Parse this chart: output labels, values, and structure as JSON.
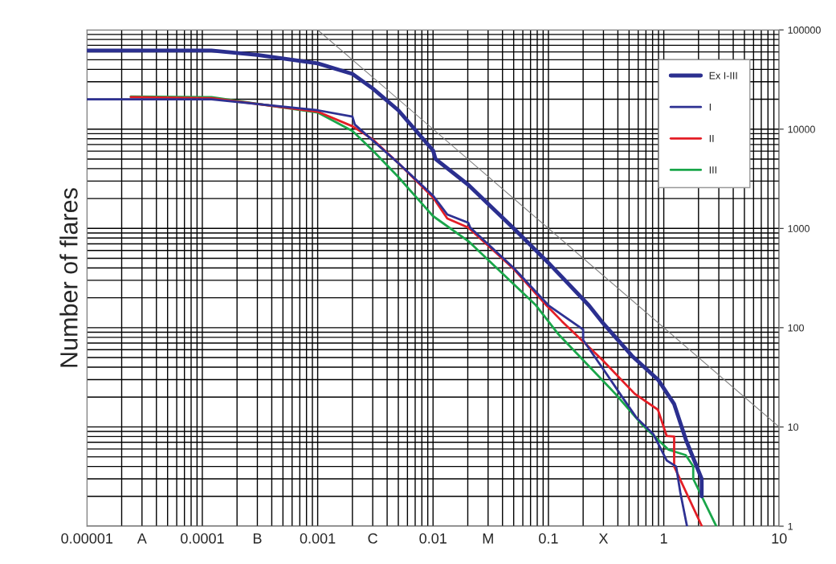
{
  "chart_data": {
    "type": "line",
    "ylabel": "Number of flares",
    "log": "xy",
    "grid": true,
    "legend": "top right",
    "line_style": "solid",
    "marker": "none",
    "xlim": [
      1e-05,
      10
    ],
    "ylim": [
      1,
      100000
    ],
    "xticks": [
      {
        "value": 1e-05,
        "label": "0.00001"
      },
      {
        "value": 3e-05,
        "label": "A"
      },
      {
        "value": 0.0001,
        "label": "0.0001"
      },
      {
        "value": 0.0003,
        "label": "B"
      },
      {
        "value": 0.001,
        "label": "0.001"
      },
      {
        "value": 0.003,
        "label": "C"
      },
      {
        "value": 0.01,
        "label": "0.01"
      },
      {
        "value": 0.03,
        "label": "M"
      },
      {
        "value": 0.1,
        "label": "0.1"
      },
      {
        "value": 0.3,
        "label": "X"
      },
      {
        "value": 1,
        "label": "1"
      },
      {
        "value": 10,
        "label": "10"
      }
    ],
    "yticks": [
      1,
      10,
      100,
      1000,
      10000,
      100000
    ],
    "series": [
      {
        "name": "Ex I-III",
        "color": "#2b2f8f",
        "x": [
          1e-05,
          0.00012,
          0.0003,
          0.001,
          0.002,
          0.003,
          0.005,
          0.01,
          0.0105,
          0.0202,
          0.05,
          0.1,
          0.224,
          0.29,
          0.53,
          0.89,
          1.23,
          1.55,
          2.13,
          2.13
        ],
        "values": [
          62000,
          62000,
          56000,
          46000,
          36000,
          25700,
          15500,
          6100,
          5000,
          2750,
          1000,
          450,
          168,
          115,
          52,
          30,
          17,
          7.5,
          3,
          2
        ]
      },
      {
        "name": "I",
        "color": "#2e3192",
        "x": [
          1e-05,
          0.00012,
          0.001,
          0.002,
          0.0021,
          0.005,
          0.01,
          0.0133,
          0.0202,
          0.021,
          0.05,
          0.1,
          0.2,
          0.2,
          0.31,
          0.43,
          0.58,
          0.81,
          1.06,
          1.28,
          1.39,
          1.59
        ],
        "values": [
          20000,
          20000,
          15500,
          13400,
          11100,
          4550,
          2140,
          1380,
          1140,
          1020,
          400,
          168,
          96,
          75,
          36,
          20.5,
          12.4,
          8.5,
          4.6,
          4,
          2.2,
          1
        ]
      },
      {
        "name": "II",
        "color": "#e41e26",
        "x": [
          2.4e-05,
          0.00012,
          0.001,
          0.002,
          0.003,
          0.005,
          0.01,
          0.0133,
          0.0202,
          0.05,
          0.096,
          0.131,
          0.29,
          0.56,
          0.89,
          1.06,
          1.23,
          1.23,
          2.14
        ],
        "values": [
          21000,
          20500,
          15000,
          10700,
          7900,
          4550,
          2050,
          1260,
          1020,
          390,
          168,
          116,
          48,
          21.6,
          14.9,
          8.1,
          8,
          4,
          1
        ]
      },
      {
        "name": "III",
        "color": "#1aa64a",
        "x": [
          2.4e-05,
          0.00012,
          0.001,
          0.002,
          0.003,
          0.005,
          0.01,
          0.0202,
          0.078,
          0.123,
          0.38,
          0.66,
          1.1,
          1.55,
          1.8,
          1.8,
          2.85
        ],
        "values": [
          21300,
          21000,
          14700,
          9600,
          6100,
          3300,
          1330,
          745,
          168,
          85,
          21.6,
          10.3,
          5.9,
          5.2,
          4,
          3,
          1
        ]
      },
      {
        "color": "#808080",
        "x": [
          0.001,
          10
        ],
        "values": [
          100000,
          10
        ]
      }
    ]
  }
}
